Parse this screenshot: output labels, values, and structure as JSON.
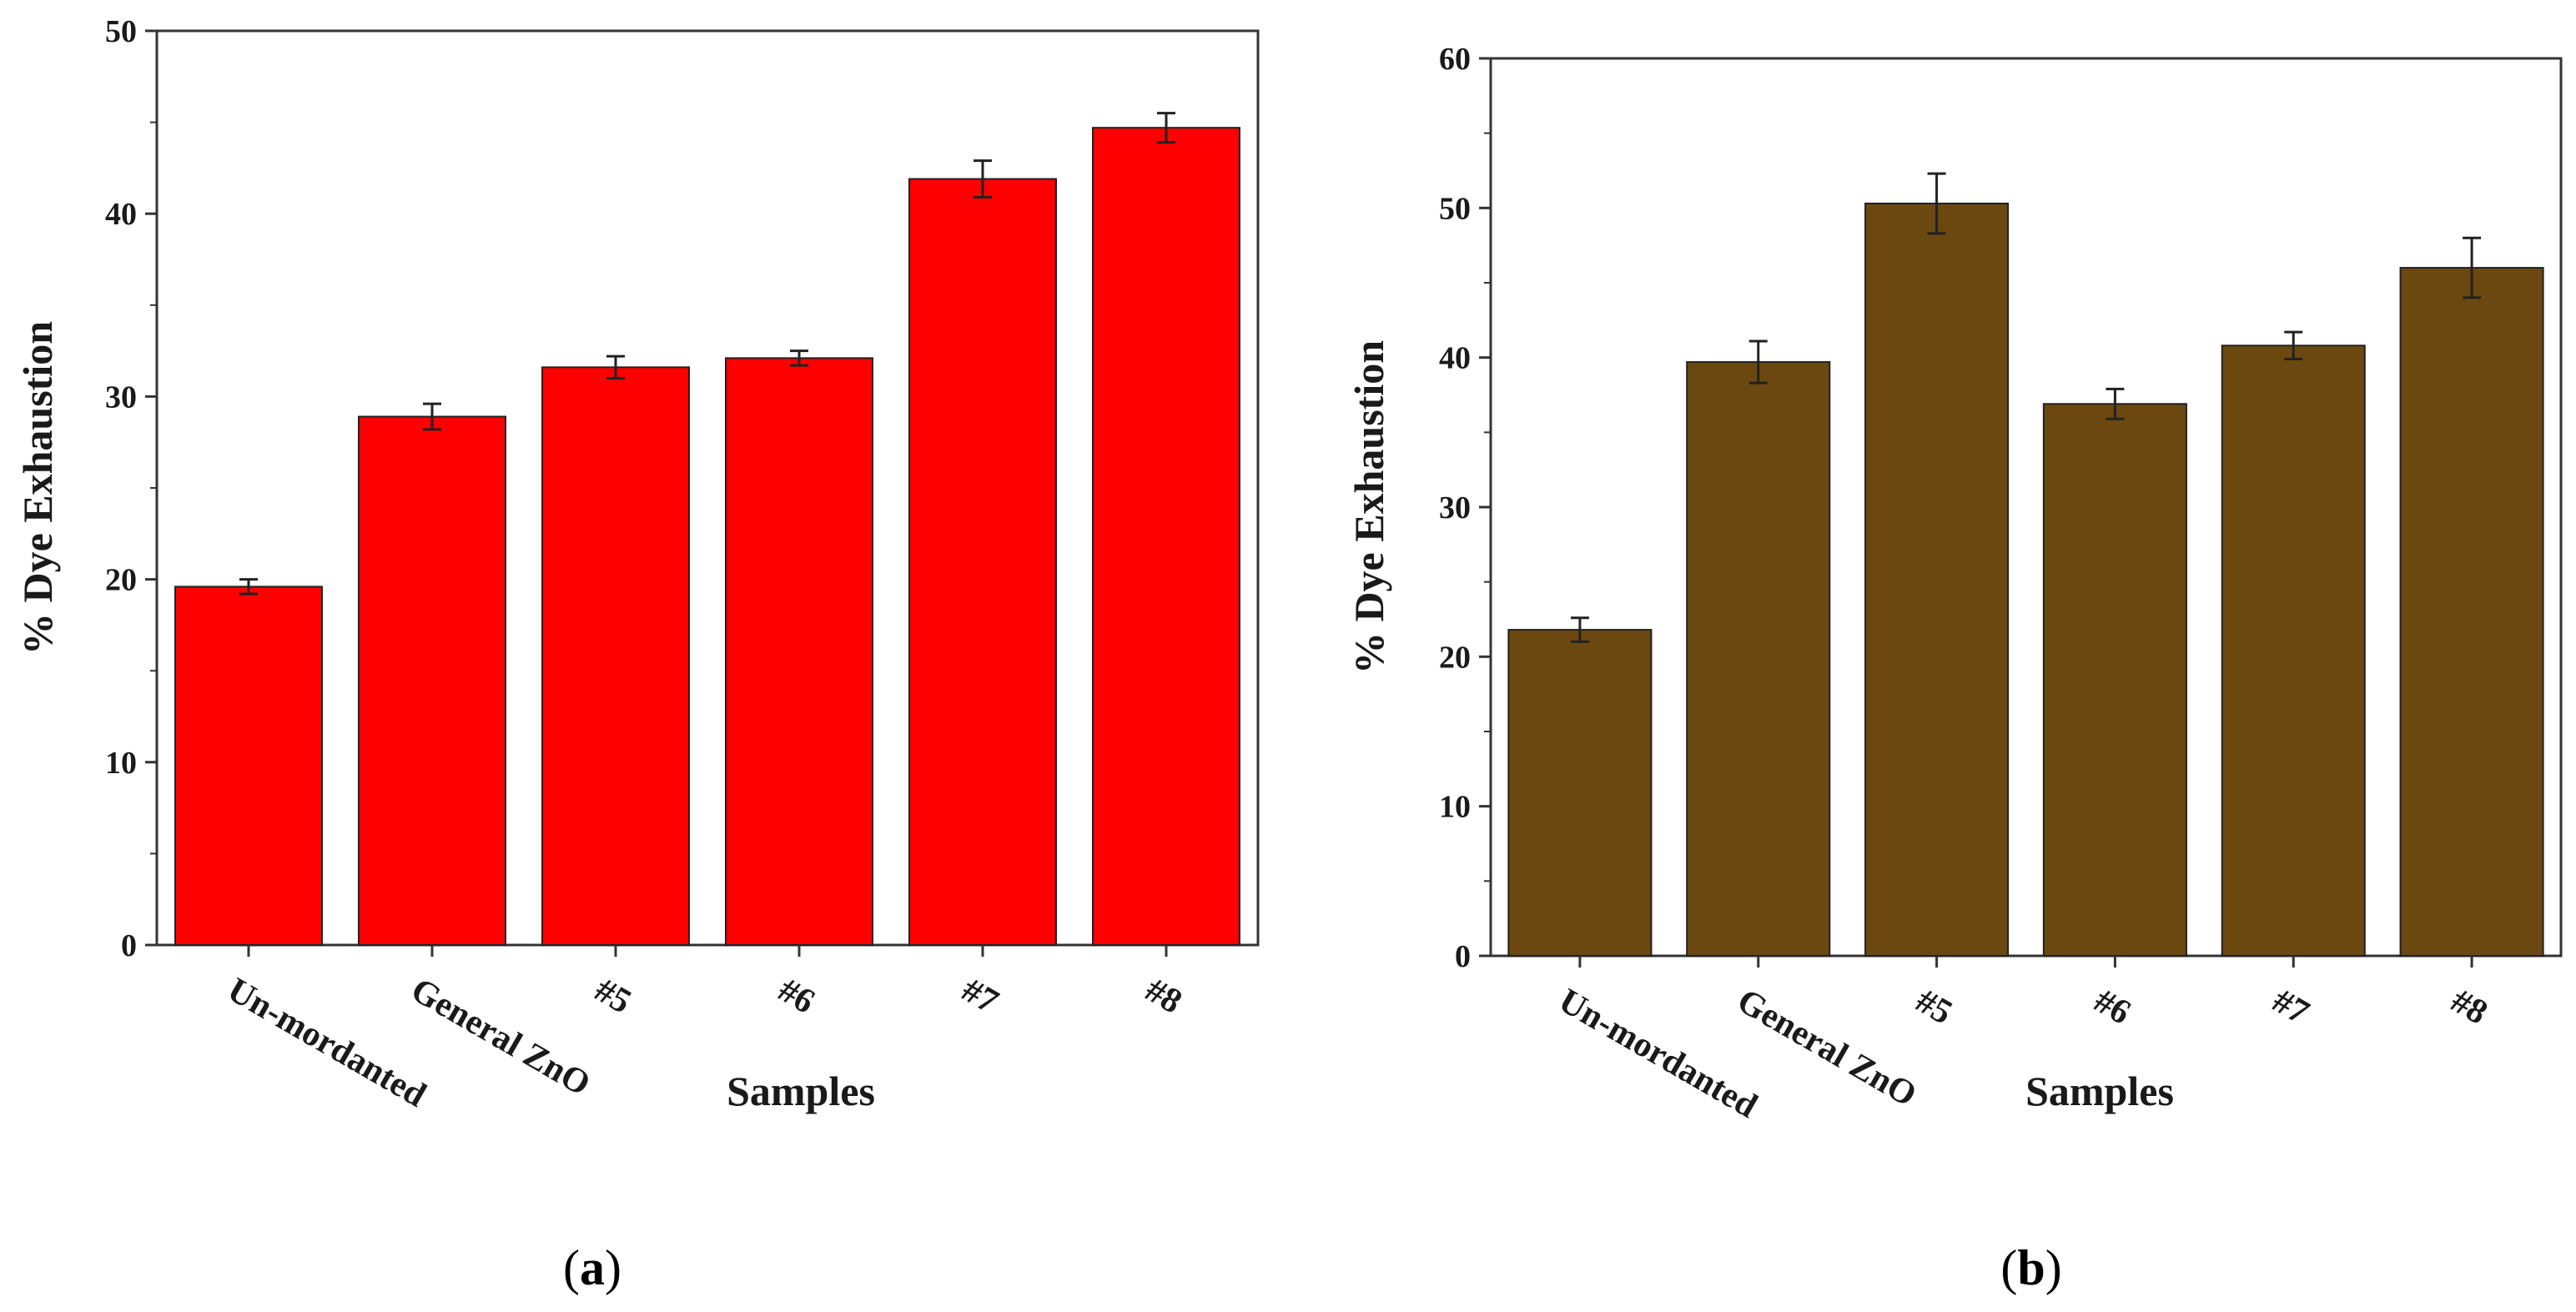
{
  "chart_data": [
    {
      "type": "bar",
      "panel": "a",
      "panel_label": "a",
      "categories": [
        "Un-mordanted",
        "General ZnO",
        "#5",
        "#6",
        "#7",
        "#8"
      ],
      "values": [
        19.6,
        28.9,
        31.6,
        32.1,
        41.9,
        44.7
      ],
      "errors": [
        0.4,
        0.7,
        0.6,
        0.4,
        1.0,
        0.8
      ],
      "xlabel": "Samples",
      "ylabel": "% Dye Exhaustion",
      "ylim": [
        0,
        50
      ],
      "yticks": [
        0,
        10,
        20,
        30,
        40,
        50
      ],
      "bar_color": "#ff0000"
    },
    {
      "type": "bar",
      "panel": "b",
      "panel_label": "b",
      "categories": [
        "Un-mordanted",
        "General ZnO",
        "#5",
        "#6",
        "#7",
        "#8"
      ],
      "values": [
        21.8,
        39.7,
        50.3,
        36.9,
        40.8,
        46.0
      ],
      "errors": [
        0.8,
        1.4,
        2.0,
        1.0,
        0.9,
        2.0
      ],
      "xlabel": "Samples",
      "ylabel": "% Dye Exhaustion",
      "ylim": [
        0,
        60
      ],
      "yticks": [
        0,
        10,
        20,
        30,
        40,
        50,
        60
      ],
      "bar_color": "#6b4810"
    }
  ]
}
